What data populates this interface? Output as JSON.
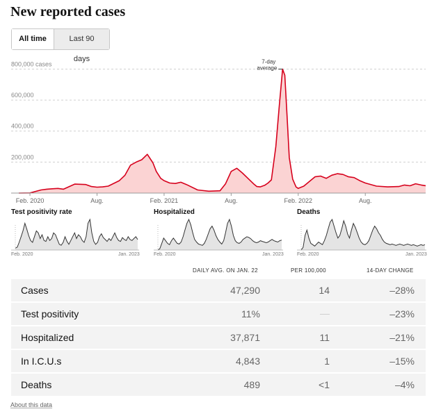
{
  "title": "New reported cases",
  "toggle": {
    "all_time": "All time",
    "last_90": "Last 90 days"
  },
  "chart_data": [
    {
      "type": "area",
      "title": "New reported cases",
      "ylabel_suffix": "cases",
      "yticks": [
        200000,
        400000,
        600000,
        800000
      ],
      "ytick_labels": [
        "200,000",
        "400,000",
        "600,000",
        "800,000 cases"
      ],
      "ylim": [
        0,
        820000
      ],
      "x_range": [
        "2020-01",
        "2023-01"
      ],
      "xtick_labels": [
        "Feb. 2020",
        "Aug.",
        "Feb. 2021",
        "Aug.",
        "Feb. 2022",
        "Aug."
      ],
      "xtick_months": [
        1,
        7,
        13,
        19,
        25,
        31
      ],
      "annotation": [
        "7-day",
        "average"
      ],
      "x": [
        0,
        1,
        2,
        2.5,
        3,
        3.5,
        4,
        5,
        6,
        6.5,
        7,
        7.5,
        8,
        9,
        9.5,
        10,
        10.5,
        11,
        11.5,
        12,
        12.3,
        12.7,
        13,
        13.5,
        14,
        14.5,
        15,
        16,
        17,
        18,
        18.5,
        19,
        19.5,
        20,
        20.5,
        21,
        21.3,
        21.6,
        22,
        22.3,
        22.6,
        23,
        23.3,
        23.6,
        23.8,
        24,
        24.2,
        24.5,
        24.8,
        25,
        25.5,
        26,
        26.5,
        27,
        27.5,
        28,
        28.5,
        29,
        29.5,
        30,
        30.5,
        31,
        32,
        33,
        34,
        34.5,
        35,
        35.5,
        36,
        36.4
      ],
      "y": [
        0,
        1000,
        20000,
        25000,
        28000,
        30000,
        25000,
        58000,
        55000,
        42000,
        38000,
        40000,
        45000,
        80000,
        115000,
        180000,
        200000,
        215000,
        250000,
        195000,
        140000,
        95000,
        80000,
        65000,
        62000,
        70000,
        55000,
        20000,
        12000,
        15000,
        60000,
        140000,
        160000,
        130000,
        95000,
        60000,
        42000,
        40000,
        50000,
        65000,
        85000,
        300000,
        560000,
        800000,
        760000,
        500000,
        230000,
        90000,
        40000,
        30000,
        45000,
        75000,
        105000,
        110000,
        95000,
        115000,
        125000,
        120000,
        105000,
        100000,
        80000,
        65000,
        45000,
        40000,
        42000,
        52000,
        47000,
        60000,
        52000,
        47290
      ]
    },
    {
      "type": "area",
      "title": "Test positivity rate",
      "xtick_labels": [
        "Feb. 2020",
        "Jan. 2023"
      ],
      "y": [
        2,
        3,
        8,
        14,
        20,
        28,
        22,
        15,
        10,
        8,
        14,
        20,
        18,
        12,
        16,
        10,
        9,
        14,
        10,
        12,
        18,
        16,
        11,
        6,
        5,
        8,
        14,
        9,
        6,
        10,
        14,
        18,
        12,
        16,
        14,
        10,
        8,
        14,
        28,
        32,
        18,
        9,
        6,
        8,
        14,
        17,
        13,
        11,
        9,
        12,
        10,
        14,
        18,
        13,
        10,
        9,
        13,
        11,
        10,
        14,
        11,
        10,
        12,
        14,
        11
      ]
    },
    {
      "type": "area",
      "title": "Hospitalized",
      "xtick_labels": [
        "Feb. 2020",
        "Jan. 2023"
      ],
      "y": [
        0,
        2,
        10,
        18,
        14,
        10,
        8,
        14,
        18,
        14,
        10,
        9,
        12,
        20,
        30,
        40,
        46,
        38,
        26,
        16,
        12,
        9,
        8,
        7,
        10,
        16,
        24,
        32,
        36,
        30,
        22,
        16,
        12,
        9,
        14,
        26,
        40,
        46,
        36,
        22,
        14,
        11,
        10,
        12,
        16,
        18,
        20,
        19,
        17,
        14,
        12,
        11,
        12,
        14,
        13,
        12,
        11,
        12,
        14,
        16,
        14,
        13,
        12,
        14,
        15
      ]
    },
    {
      "type": "area",
      "title": "Deaths",
      "xtick_labels": [
        "Feb. 2020",
        "Jan. 2023"
      ],
      "y": [
        0,
        4,
        22,
        30,
        18,
        10,
        8,
        6,
        9,
        12,
        10,
        8,
        14,
        22,
        32,
        42,
        46,
        36,
        26,
        18,
        22,
        32,
        44,
        36,
        24,
        18,
        30,
        40,
        34,
        26,
        18,
        12,
        9,
        8,
        10,
        14,
        22,
        30,
        36,
        32,
        26,
        22,
        16,
        12,
        10,
        9,
        8,
        9,
        8,
        7,
        8,
        9,
        8,
        7,
        8,
        9,
        8,
        7,
        8,
        7,
        6,
        7,
        8,
        7,
        8
      ]
    }
  ],
  "table": {
    "headers": [
      "DAILY AVG. ON JAN. 22",
      "PER 100,000",
      "14-DAY CHANGE"
    ],
    "rows": [
      {
        "label": "Cases",
        "avg": "47,290",
        "per": "14",
        "change": "–28%"
      },
      {
        "label": "Test positivity",
        "avg": "11%",
        "per": "",
        "change": "–23%"
      },
      {
        "label": "Hospitalized",
        "avg": "37,871",
        "per": "11",
        "change": "–21%"
      },
      {
        "label": "In I.C.U.s",
        "avg": "4,843",
        "per": "1",
        "change": "–15%"
      },
      {
        "label": "Deaths",
        "avg": "489",
        "per": "<1",
        "change": "–4%"
      }
    ]
  },
  "about": "About this data",
  "colors": {
    "line": "#d6001c",
    "fill": "#fbd3d3",
    "mini_line": "#333333",
    "mini_fill": "#e4e4e4"
  }
}
